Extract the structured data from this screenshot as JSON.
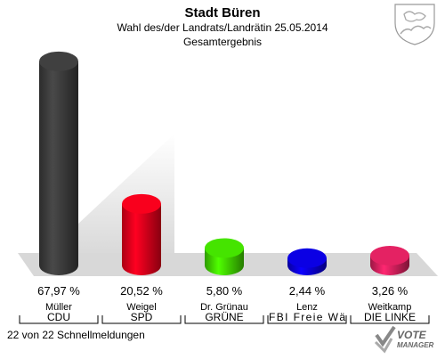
{
  "header": {
    "title": "Stadt Büren",
    "subtitle": "Wahl des/der Landrats/Landrätin 25.05.2014",
    "subtitle2": "Gesamtergebnis"
  },
  "footer": {
    "status": "22 von 22 Schnellmeldungen"
  },
  "logo": {
    "line1": "VOTE",
    "line2": "MANAGER"
  },
  "chart_data": {
    "type": "bar",
    "title": "Wahl des/der Landrats/Landrätin 25.05.2014",
    "categories": [
      "Müller",
      "Weigel",
      "Dr. Grünau",
      "Lenz",
      "Weitkamp"
    ],
    "parties": [
      "CDU",
      "SPD",
      "GRÜNE",
      "FBI Freie Wä",
      "DIE LINKE"
    ],
    "values": [
      67.97,
      20.52,
      5.8,
      2.44,
      3.26
    ],
    "value_labels": [
      "67,97 %",
      "20,52 %",
      "5,80 %",
      "2,44 %",
      "3,26 %"
    ],
    "colors": [
      "#3a3a3a",
      "#e2001a",
      "#3fcf00",
      "#0a00cf",
      "#cf1f5a"
    ],
    "ylim": [
      0,
      70
    ],
    "legend": "none",
    "grid": false
  }
}
